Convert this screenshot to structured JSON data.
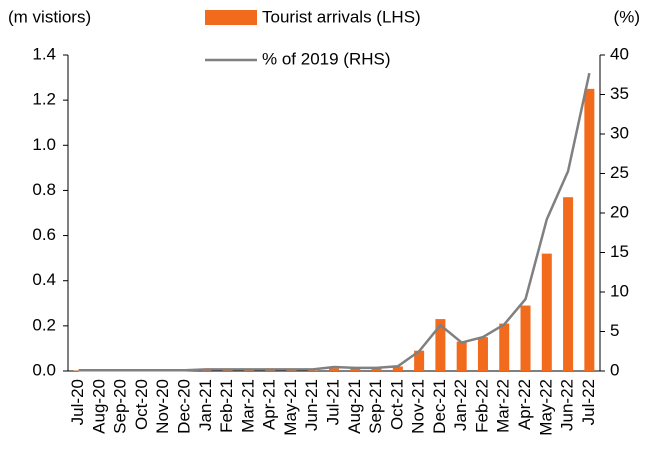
{
  "chart_data": {
    "type": "bar_line",
    "y_label": "(m vistiors)",
    "y2_label": "(%)",
    "categories": [
      "Jul-20",
      "Aug-20",
      "Sep-20",
      "Oct-20",
      "Nov-20",
      "Dec-20",
      "Jan-21",
      "Feb-21",
      "Mar-21",
      "Apr-21",
      "May-21",
      "Jun-21",
      "Jul-21",
      "Aug-21",
      "Sep-21",
      "Oct-21",
      "Nov-21",
      "Dec-21",
      "Jan-22",
      "Feb-22",
      "Mar-22",
      "Apr-22",
      "May-22",
      "Jun-22",
      "Jul-22"
    ],
    "series": [
      {
        "name": "Tourist arrivals (LHS)",
        "color": "#f26a1b",
        "kind": "bar",
        "values": [
          0.002,
          0.002,
          0.002,
          0.002,
          0.002,
          0.003,
          0.003,
          0.003,
          0.003,
          0.004,
          0.003,
          0.003,
          0.012,
          0.01,
          0.01,
          0.02,
          0.09,
          0.23,
          0.13,
          0.15,
          0.21,
          0.29,
          0.52,
          0.77,
          1.25
        ]
      },
      {
        "name": "% of 2019 (RHS)",
        "color": "#808080",
        "kind": "line",
        "axis": "y2",
        "values": [
          0.1,
          0.1,
          0.1,
          0.1,
          0.1,
          0.1,
          0.2,
          0.2,
          0.2,
          0.2,
          0.2,
          0.2,
          0.5,
          0.4,
          0.4,
          0.6,
          2.5,
          5.8,
          3.6,
          4.3,
          5.9,
          9.1,
          19.2,
          25.3,
          37.7
        ]
      }
    ],
    "ylim": [
      0,
      1.4
    ],
    "yticks": [
      {
        "value": 0,
        "label": "0.0"
      },
      {
        "value": 0.2,
        "label": "0.2"
      },
      {
        "value": 0.4,
        "label": "0.4"
      },
      {
        "value": 0.6,
        "label": "0.6"
      },
      {
        "value": 0.8,
        "label": "0.8"
      },
      {
        "value": 1,
        "label": "1.0"
      },
      {
        "value": 1.2,
        "label": "1.2"
      },
      {
        "value": 1.4,
        "label": "1.4"
      }
    ],
    "y2lim": [
      0,
      40
    ],
    "y2ticks": [
      0,
      5,
      10,
      15,
      20,
      25,
      30,
      35,
      40
    ],
    "grid": false
  }
}
